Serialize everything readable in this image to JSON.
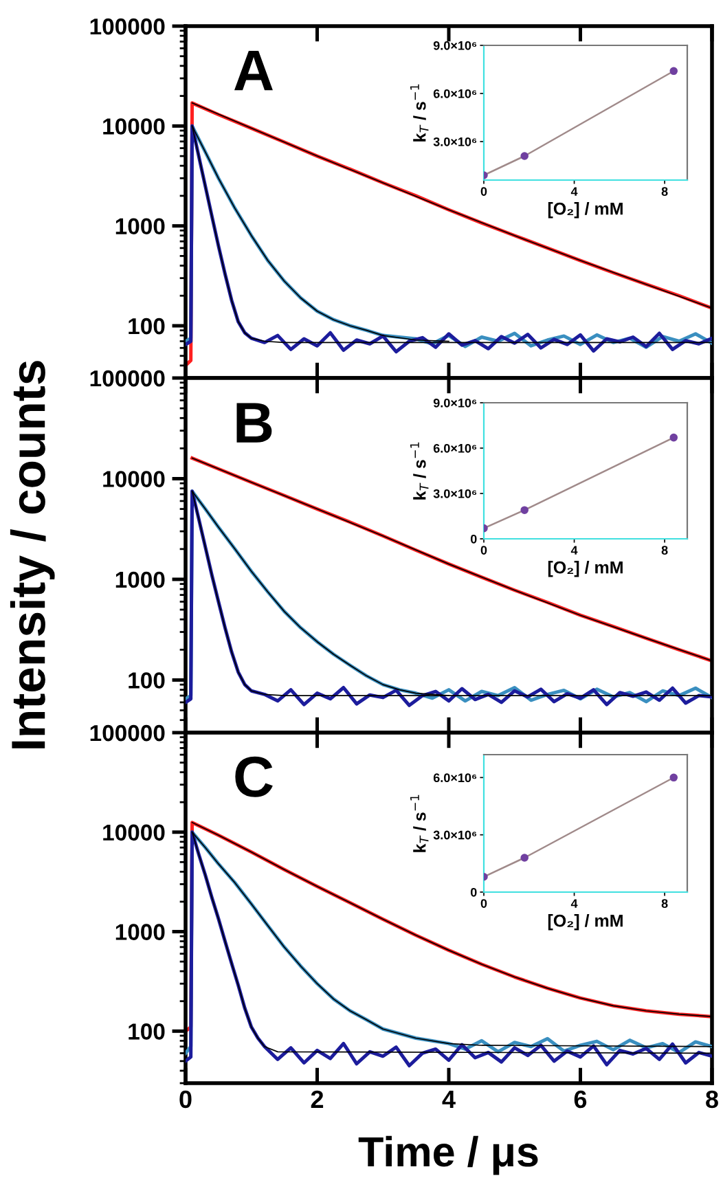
{
  "chart_data": [
    {
      "type": "line",
      "annotations": [
        "A"
      ],
      "xlim": [
        0,
        8
      ],
      "xticks": [
        0,
        2,
        4,
        6,
        8
      ],
      "ylim": [
        30,
        100000
      ],
      "yticks": [
        100,
        1000,
        10000,
        100000
      ],
      "log": "y",
      "tick_labels": "y",
      "marker": "none",
      "line_style": "solid",
      "grid": false,
      "series": [
        {
          "color": "#ff2020",
          "x": [
            0,
            0.08,
            0.1,
            0.5,
            1,
            1.5,
            2,
            2.5,
            3,
            3.5,
            4,
            4.5,
            5,
            5.5,
            6,
            6.5,
            7,
            7.5,
            8
          ],
          "values": [
            40,
            45,
            17000,
            13000,
            9500,
            6900,
            5000,
            3700,
            2700,
            2000,
            1450,
            1070,
            800,
            600,
            450,
            340,
            260,
            200,
            150
          ]
        },
        {
          "color": "#3a8fc0",
          "x": [
            0,
            0.08,
            0.1,
            0.3,
            0.5,
            0.75,
            1,
            1.25,
            1.5,
            1.75,
            2,
            2.25,
            2.5,
            2.75,
            3,
            3.5,
            3.75,
            4,
            4.25,
            4.5,
            4.75,
            5,
            5.25,
            5.5,
            5.75,
            6,
            6.25,
            6.5,
            6.75,
            7,
            7.25,
            7.5,
            7.75,
            8
          ],
          "values": [
            70,
            75,
            10000,
            5500,
            3000,
            1500,
            800,
            450,
            280,
            190,
            140,
            115,
            100,
            90,
            80,
            74,
            66,
            80,
            62,
            77,
            70,
            84,
            63,
            72,
            79,
            65,
            81,
            68,
            75,
            61,
            78,
            70,
            83,
            67
          ]
        },
        {
          "color": "#1c1c9c",
          "x": [
            0,
            0.08,
            0.1,
            0.2,
            0.3,
            0.4,
            0.5,
            0.6,
            0.7,
            0.8,
            0.9,
            1.0,
            1.2,
            1.4,
            1.6,
            1.8,
            2.0,
            2.2,
            2.4,
            2.6,
            2.8,
            3.0,
            3.2,
            3.4,
            3.6,
            3.8,
            4.0,
            4.2,
            4.4,
            4.6,
            4.8,
            5.0,
            5.2,
            5.4,
            5.6,
            5.8,
            6.0,
            6.2,
            6.4,
            6.6,
            6.8,
            7.0,
            7.2,
            7.4,
            7.6,
            7.8,
            8.0
          ],
          "values": [
            65,
            70,
            10000,
            5000,
            2500,
            1250,
            630,
            330,
            180,
            110,
            85,
            75,
            68,
            80,
            58,
            74,
            63,
            85,
            57,
            72,
            66,
            79,
            55,
            70,
            76,
            61,
            83,
            64,
            71,
            59,
            78,
            67,
            82,
            60,
            73,
            65,
            81,
            56,
            74,
            69,
            77,
            62,
            84,
            58,
            71,
            66,
            75
          ]
        },
        {
          "color": "#000000",
          "x": [
            0.1,
            1,
            2,
            3,
            4,
            5,
            6,
            7,
            8
          ],
          "values": [
            17000,
            9500,
            5000,
            2700,
            1450,
            800,
            450,
            260,
            150
          ]
        },
        {
          "color": "#000000",
          "x": [
            0.1,
            0.3,
            0.5,
            0.75,
            1,
            1.25,
            1.5,
            1.75,
            2,
            2.25,
            2.5,
            2.75,
            3,
            3.5,
            4
          ],
          "values": [
            10000,
            5500,
            3000,
            1500,
            800,
            450,
            280,
            190,
            140,
            115,
            100,
            90,
            80,
            72,
            70
          ]
        },
        {
          "color": "#000000",
          "x": [
            0.1,
            0.2,
            0.3,
            0.4,
            0.5,
            0.6,
            0.7,
            0.8,
            0.9,
            1.0,
            1.2,
            1.5,
            8
          ],
          "values": [
            10000,
            5000,
            2500,
            1250,
            630,
            330,
            180,
            110,
            85,
            75,
            70,
            68,
            68
          ]
        }
      ]
    },
    {
      "type": "line",
      "xlabel": "[O₂] / mM",
      "ylabel": "k$_{T}$ / s$^{−1}$",
      "xlim": [
        0,
        9
      ],
      "xticks": [
        0,
        4,
        8
      ],
      "ylim": [
        600000,
        9000000
      ],
      "yticks": [
        {
          "value": 3000000,
          "label": "3.0×10⁶"
        },
        {
          "value": 6000000,
          "label": "6.0×10⁶"
        },
        {
          "value": 9000000,
          "label": "9.0×10⁶"
        }
      ],
      "grid": false,
      "series": [
        {
          "type": "line",
          "color": "#a08a8a",
          "x": [
            0,
            1.8,
            8.4
          ],
          "values": [
            900000,
            2100000,
            7400000
          ]
        },
        {
          "type": "scatter",
          "color": "#7040a0",
          "x": [
            0,
            1.8,
            8.4
          ],
          "values": [
            900000,
            2100000,
            7400000
          ]
        }
      ]
    },
    {
      "type": "line",
      "annotations": [
        "B"
      ],
      "ylabel": "Intensity / counts",
      "xlim": [
        0,
        8
      ],
      "xticks": [
        0,
        2,
        4,
        6,
        8
      ],
      "ylim": [
        30,
        100000
      ],
      "yticks": [
        100,
        1000,
        10000,
        100000
      ],
      "log": "y",
      "tick_labels": "y",
      "marker": "none",
      "line_style": "solid",
      "grid": false,
      "series": [
        {
          "color": "#ff2020",
          "x": [
            0.1,
            0.5,
            1,
            1.5,
            2,
            2.5,
            3,
            3.5,
            4,
            4.5,
            5,
            5.5,
            6,
            6.5,
            7,
            7.5,
            8
          ],
          "values": [
            16000,
            12500,
            9200,
            6800,
            5000,
            3700,
            2700,
            1950,
            1420,
            1050,
            780,
            590,
            440,
            340,
            260,
            200,
            155
          ]
        },
        {
          "color": "#3a8fc0",
          "x": [
            0,
            0.08,
            0.1,
            0.3,
            0.5,
            0.75,
            1,
            1.25,
            1.5,
            1.75,
            2,
            2.25,
            2.5,
            2.75,
            3,
            3.25,
            3.5,
            3.75,
            4,
            4.25,
            4.5,
            4.75,
            5,
            5.25,
            5.5,
            5.75,
            6,
            6.25,
            6.5,
            6.75,
            7,
            7.25,
            7.5,
            7.75,
            8
          ],
          "values": [
            65,
            70,
            7500,
            5000,
            3300,
            2000,
            1200,
            750,
            480,
            330,
            240,
            180,
            140,
            110,
            90,
            80,
            74,
            66,
            80,
            62,
            77,
            70,
            84,
            63,
            72,
            79,
            65,
            81,
            68,
            75,
            61,
            78,
            70,
            83,
            67
          ]
        },
        {
          "color": "#1c1c9c",
          "x": [
            0,
            0.08,
            0.1,
            0.2,
            0.3,
            0.4,
            0.5,
            0.6,
            0.7,
            0.8,
            0.9,
            1.0,
            1.2,
            1.4,
            1.6,
            1.8,
            2.0,
            2.2,
            2.4,
            2.6,
            2.8,
            3.0,
            3.2,
            3.4,
            3.6,
            3.8,
            4.0,
            4.2,
            4.4,
            4.6,
            4.8,
            5.0,
            5.2,
            5.4,
            5.6,
            5.8,
            6.0,
            6.2,
            6.4,
            6.6,
            6.8,
            7.0,
            7.2,
            7.4,
            7.6,
            7.8,
            8.0
          ],
          "values": [
            60,
            65,
            7500,
            4000,
            2100,
            1100,
            600,
            330,
            190,
            120,
            90,
            78,
            72,
            62,
            80,
            57,
            74,
            65,
            84,
            58,
            71,
            67,
            79,
            56,
            70,
            77,
            62,
            82,
            64,
            72,
            60,
            78,
            68,
            81,
            61,
            73,
            66,
            80,
            57,
            75,
            69,
            76,
            63,
            83,
            59,
            70,
            68
          ]
        },
        {
          "color": "#000000",
          "x": [
            0.1,
            1,
            2,
            3,
            4,
            5,
            6,
            7,
            8
          ],
          "values": [
            16000,
            9200,
            5000,
            2700,
            1420,
            780,
            440,
            260,
            155
          ]
        },
        {
          "color": "#000000",
          "x": [
            0.1,
            0.3,
            0.5,
            0.75,
            1,
            1.25,
            1.5,
            1.75,
            2,
            2.25,
            2.5,
            2.75,
            3,
            3.25,
            3.5,
            4
          ],
          "values": [
            7500,
            5000,
            3300,
            2000,
            1200,
            750,
            480,
            330,
            240,
            180,
            140,
            110,
            90,
            80,
            74,
            70
          ]
        },
        {
          "color": "#000000",
          "x": [
            0.1,
            0.2,
            0.3,
            0.4,
            0.5,
            0.6,
            0.7,
            0.8,
            0.9,
            1.0,
            1.2,
            1.5,
            8
          ],
          "values": [
            7500,
            4000,
            2100,
            1100,
            600,
            330,
            190,
            120,
            90,
            78,
            72,
            70,
            70
          ]
        }
      ]
    },
    {
      "type": "line",
      "xlabel": "[O₂] / mM",
      "ylabel": "k$_{T}$ / s$^{−1}$",
      "xlim": [
        0,
        9
      ],
      "xticks": [
        0,
        4,
        8
      ],
      "ylim": [
        0,
        9000000
      ],
      "yticks": [
        0,
        {
          "value": 3000000,
          "label": "3.0×10⁶"
        },
        {
          "value": 6000000,
          "label": "6.0×10⁶"
        },
        {
          "value": 9000000,
          "label": "9.0×10⁶"
        }
      ],
      "grid": false,
      "series": [
        {
          "type": "line",
          "color": "#a08a8a",
          "x": [
            0,
            1.8,
            8.4
          ],
          "values": [
            700000,
            1900000,
            6700000
          ]
        },
        {
          "type": "scatter",
          "color": "#7040a0",
          "x": [
            0,
            1.8,
            8.4
          ],
          "values": [
            700000,
            1900000,
            6700000
          ]
        }
      ]
    },
    {
      "type": "line",
      "annotations": [
        "C"
      ],
      "xlabel": "Time / μs",
      "xlim": [
        0,
        8
      ],
      "xticks": [
        0,
        2,
        4,
        6,
        8
      ],
      "ylim": [
        30,
        100000
      ],
      "yticks": [
        100,
        1000,
        10000,
        100000
      ],
      "log": "y",
      "marker": "none",
      "line_style": "solid",
      "grid": false,
      "series": [
        {
          "color": "#ff2020",
          "x": [
            0,
            0.08,
            0.1,
            0.5,
            1,
            1.5,
            2,
            2.5,
            3,
            3.5,
            4,
            4.5,
            5,
            5.5,
            6,
            6.5,
            7,
            7.5,
            8
          ],
          "values": [
            100,
            110,
            12500,
            9300,
            6300,
            4200,
            2850,
            1950,
            1330,
            920,
            650,
            470,
            350,
            270,
            215,
            180,
            160,
            148,
            140
          ]
        },
        {
          "color": "#3a8fc0",
          "x": [
            0,
            0.08,
            0.1,
            0.3,
            0.5,
            0.75,
            1,
            1.25,
            1.5,
            1.75,
            2,
            2.25,
            2.5,
            2.75,
            3,
            3.5,
            4,
            4.25,
            4.5,
            4.75,
            5,
            5.25,
            5.5,
            5.75,
            6,
            6.25,
            6.5,
            6.75,
            7,
            7.25,
            7.5,
            7.75,
            8
          ],
          "values": [
            60,
            70,
            10000,
            7000,
            4800,
            3100,
            1900,
            1150,
            700,
            450,
            300,
            210,
            160,
            130,
            105,
            85,
            75,
            66,
            80,
            62,
            77,
            70,
            84,
            63,
            72,
            79,
            65,
            81,
            68,
            75,
            61,
            78,
            70
          ]
        },
        {
          "color": "#1c1c9c",
          "x": [
            0,
            0.08,
            0.1,
            0.2,
            0.3,
            0.4,
            0.5,
            0.6,
            0.7,
            0.8,
            0.9,
            1.0,
            1.1,
            1.2,
            1.4,
            1.6,
            1.8,
            2.0,
            2.2,
            2.4,
            2.6,
            2.8,
            3.0,
            3.2,
            3.4,
            3.6,
            3.8,
            4.0,
            4.2,
            4.4,
            4.6,
            4.8,
            5.0,
            5.2,
            5.4,
            5.6,
            5.8,
            6.0,
            6.2,
            6.4,
            6.6,
            6.8,
            7.0,
            7.2,
            7.4,
            7.6,
            7.8,
            8.0
          ],
          "values": [
            50,
            55,
            10000,
            6000,
            3700,
            2200,
            1350,
            800,
            480,
            290,
            170,
            110,
            85,
            70,
            52,
            68,
            48,
            64,
            53,
            75,
            47,
            62,
            56,
            69,
            45,
            60,
            66,
            51,
            73,
            54,
            61,
            49,
            68,
            57,
            72,
            50,
            63,
            55,
            71,
            46,
            64,
            59,
            67,
            52,
            74,
            48,
            61,
            56
          ]
        },
        {
          "color": "#000000",
          "x": [
            0.1,
            0.5,
            1,
            1.5,
            2,
            2.5,
            3,
            3.5,
            4,
            4.5,
            5,
            5.5,
            6,
            6.5,
            7,
            7.5,
            8
          ],
          "values": [
            12500,
            9300,
            6300,
            4200,
            2850,
            1950,
            1330,
            920,
            650,
            470,
            350,
            270,
            215,
            180,
            160,
            148,
            140
          ]
        },
        {
          "color": "#000000",
          "x": [
            0.1,
            0.3,
            0.5,
            0.75,
            1,
            1.25,
            1.5,
            1.75,
            2,
            2.25,
            2.5,
            2.75,
            3,
            3.5,
            4,
            4.5,
            8
          ],
          "values": [
            10000,
            7000,
            4800,
            3100,
            1900,
            1150,
            700,
            450,
            300,
            210,
            160,
            130,
            105,
            85,
            75,
            72,
            70
          ]
        },
        {
          "color": "#000000",
          "x": [
            0.1,
            0.2,
            0.3,
            0.4,
            0.5,
            0.6,
            0.7,
            0.8,
            0.9,
            1.0,
            1.1,
            1.2,
            1.4,
            8
          ],
          "values": [
            10000,
            6000,
            3700,
            2200,
            1350,
            800,
            480,
            290,
            170,
            110,
            85,
            70,
            62,
            60
          ]
        }
      ]
    },
    {
      "type": "line",
      "xlabel": "[O₂] / mM",
      "ylabel": "k$_{T}$ / s$^{−1}$",
      "xlim": [
        0,
        9
      ],
      "xticks": [
        0,
        4,
        8
      ],
      "ylim": [
        0,
        7200000
      ],
      "yticks": [
        0,
        {
          "value": 3000000,
          "label": "3.0×10⁶"
        },
        {
          "value": 6000000,
          "label": "6.0×10⁶"
        }
      ],
      "grid": false,
      "series": [
        {
          "type": "line",
          "color": "#a08a8a",
          "x": [
            0,
            1.8,
            8.4
          ],
          "values": [
            800000,
            1800000,
            6000000
          ]
        },
        {
          "type": "scatter",
          "color": "#7040a0",
          "x": [
            0,
            1.8,
            8.4
          ],
          "values": [
            800000,
            1800000,
            6000000
          ]
        }
      ]
    }
  ]
}
